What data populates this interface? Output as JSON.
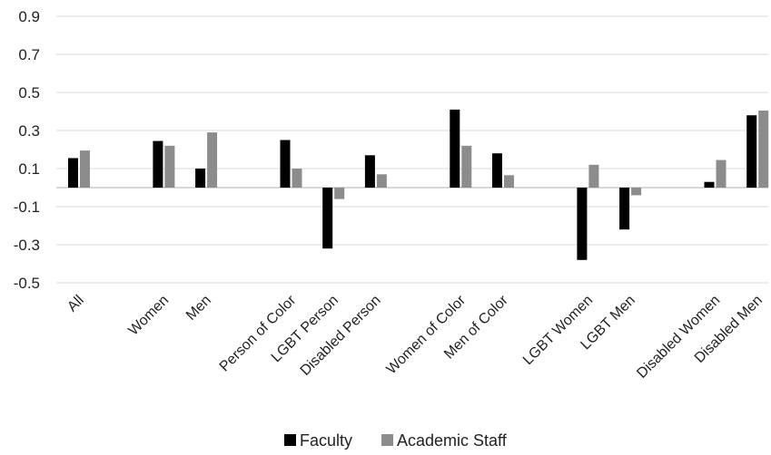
{
  "chart_data": {
    "type": "bar",
    "title": "",
    "xlabel": "",
    "ylabel": "",
    "ylim": [
      -0.5,
      0.9
    ],
    "yticks": [
      -0.5,
      -0.3,
      -0.1,
      0.1,
      0.3,
      0.5,
      0.7,
      0.9
    ],
    "grid": true,
    "legend_position": "bottom",
    "categories": [
      "All",
      "Women",
      "Men",
      "Person of Color",
      "LGBT Person",
      "Disabled Person",
      "Women of Color",
      "Men of Color",
      "LGBT Women",
      "LGBT Men",
      "Disabled Women",
      "Disabled Men"
    ],
    "group_spacing": [
      0,
      2,
      3,
      5,
      6,
      7,
      9,
      10,
      12,
      13,
      15,
      16
    ],
    "series": [
      {
        "name": "Faculty",
        "color": "#000000",
        "values": [
          0.155,
          0.245,
          0.1,
          0.25,
          -0.32,
          0.17,
          0.41,
          0.18,
          -0.38,
          -0.22,
          0.03,
          0.38
        ]
      },
      {
        "name": "Academic Staff",
        "color": "#8c8c8c",
        "values": [
          0.195,
          0.22,
          0.29,
          0.1,
          -0.06,
          0.07,
          0.22,
          0.065,
          0.12,
          -0.04,
          0.145,
          0.405
        ]
      }
    ]
  }
}
